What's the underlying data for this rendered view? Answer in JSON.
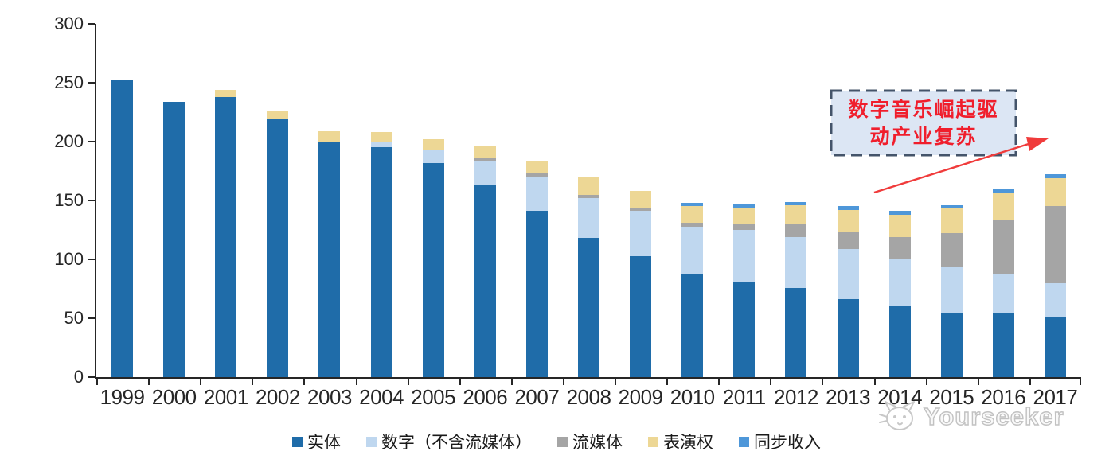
{
  "chart_data": {
    "type": "bar",
    "variant": "stacked",
    "title": "",
    "xlabel": "",
    "ylabel": "",
    "categories": [
      "1999",
      "2000",
      "2001",
      "2002",
      "2003",
      "2004",
      "2005",
      "2006",
      "2007",
      "2008",
      "2009",
      "2010",
      "2011",
      "2012",
      "2013",
      "2014",
      "2015",
      "2016",
      "2017"
    ],
    "series": [
      {
        "name": "实体",
        "color": "#1F6CA9",
        "values": [
          252,
          234,
          238,
          219,
          200,
          195,
          182,
          163,
          141,
          118,
          103,
          88,
          81,
          76,
          66,
          60,
          55,
          54,
          51
        ]
      },
      {
        "name": "数字（不含流媒体）",
        "color": "#BFD7EF",
        "values": [
          0,
          0,
          0,
          0,
          0,
          5,
          11,
          21,
          29,
          34,
          38,
          40,
          44,
          43,
          43,
          41,
          39,
          33,
          29
        ]
      },
      {
        "name": "流媒体",
        "color": "#A5A5A5",
        "values": [
          0,
          0,
          0,
          0,
          0,
          0,
          0,
          2,
          3,
          3,
          3,
          3,
          5,
          11,
          15,
          18,
          28,
          47,
          65
        ]
      },
      {
        "name": "表演权",
        "color": "#EDD795",
        "values": [
          0,
          0,
          6,
          7,
          9,
          8,
          9,
          10,
          10,
          15,
          14,
          14,
          14,
          16,
          18,
          19,
          21,
          22,
          24
        ]
      },
      {
        "name": "同步收入",
        "color": "#4E97D9",
        "values": [
          0,
          0,
          0,
          0,
          0,
          0,
          0,
          0,
          0,
          0,
          0,
          3,
          3,
          3,
          3,
          3,
          3,
          4,
          3
        ]
      }
    ],
    "ylim": [
      0,
      300
    ],
    "yticks": [
      0,
      50,
      100,
      150,
      200,
      250,
      300
    ],
    "legend_position": "bottom",
    "grid": false
  },
  "annotation": {
    "lines": [
      "数字音乐崛起驱",
      "动产业复苏"
    ],
    "text_color": "#F01E2C",
    "box_fill": "#DCE6F4",
    "box_border": "#44546A",
    "arrow_color": "#F03B3B"
  },
  "watermark": {
    "text": "Yourseeker",
    "icon": "cat-face-icon",
    "color": "#BFBFBF"
  },
  "colors": {
    "axis": "#262626",
    "background": "#FFFFFF"
  }
}
